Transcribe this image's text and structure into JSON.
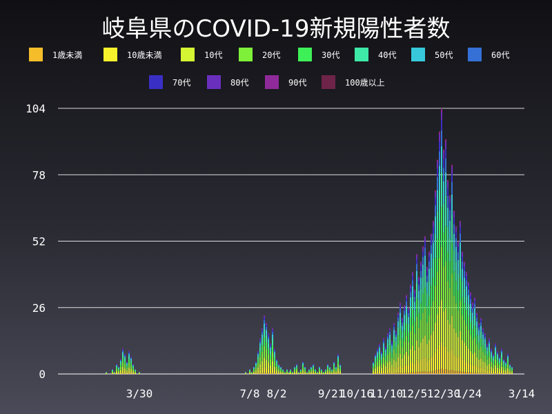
{
  "chart_data": {
    "type": "bar",
    "stacked": true,
    "title": "岐阜県のCOVID-19新規陽性者数",
    "ylim": [
      0,
      104
    ],
    "yticks": [
      0,
      26,
      52,
      78,
      104
    ],
    "xticks": [
      "3/30",
      "7/8",
      "8/2",
      "9/21",
      "10/16",
      "11/10",
      "12/5",
      "12/30",
      "1/24",
      "3/14"
    ],
    "grid": true,
    "legend_position": "top",
    "series": [
      {
        "name": "1歳未満",
        "color": "#f5bd2a"
      },
      {
        "name": "10歳未満",
        "color": "#f7f22b"
      },
      {
        "name": "10代",
        "color": "#d4f532"
      },
      {
        "name": "20代",
        "color": "#7ef03a"
      },
      {
        "name": "30代",
        "color": "#3ef058"
      },
      {
        "name": "40代",
        "color": "#3ee8a6"
      },
      {
        "name": "50代",
        "color": "#37c9db"
      },
      {
        "name": "60代",
        "color": "#3570d6"
      },
      {
        "name": "70代",
        "color": "#3a2fc4"
      },
      {
        "name": "80代",
        "color": "#6b2fbe"
      },
      {
        "name": "90代",
        "color": "#8f2a9a"
      },
      {
        "name": "100歳以上",
        "color": "#6e2348"
      }
    ],
    "segments": [
      {
        "date": "3/30",
        "totals": [
          0,
          1,
          0,
          0,
          2,
          1,
          4,
          3,
          6,
          10,
          8,
          5,
          9,
          7,
          4,
          2,
          0,
          1,
          0,
          0
        ]
      },
      {
        "date": "7/8",
        "totals": [
          0,
          1,
          0,
          2,
          1,
          3,
          5,
          9,
          14,
          18,
          23,
          20,
          16,
          12,
          18,
          10,
          6,
          4,
          3,
          2,
          1,
          2,
          1,
          0
        ]
      },
      {
        "date": "9/21",
        "totals": [
          2,
          1,
          3,
          4,
          1,
          2,
          5,
          3,
          1,
          2,
          3,
          4,
          2,
          1,
          3,
          2,
          1,
          2,
          4,
          3,
          2,
          5,
          3,
          8,
          4
        ]
      },
      {
        "date": "11/10",
        "totals": [
          5,
          8,
          10,
          12,
          9,
          14,
          11,
          16,
          18,
          13,
          20,
          17,
          24,
          28,
          22,
          27,
          31,
          26,
          35,
          40,
          33,
          47,
          38,
          44,
          50,
          54,
          42,
          48,
          55,
          60,
          72,
          84,
          95,
          104,
          88,
          92,
          76,
          70,
          82,
          64,
          58,
          52,
          60,
          48,
          44,
          40,
          36,
          32,
          28,
          30,
          24,
          20,
          22,
          18,
          16,
          12,
          14,
          10,
          8,
          12,
          9,
          7,
          10,
          6,
          5,
          8,
          4,
          3
        ]
      }
    ]
  }
}
